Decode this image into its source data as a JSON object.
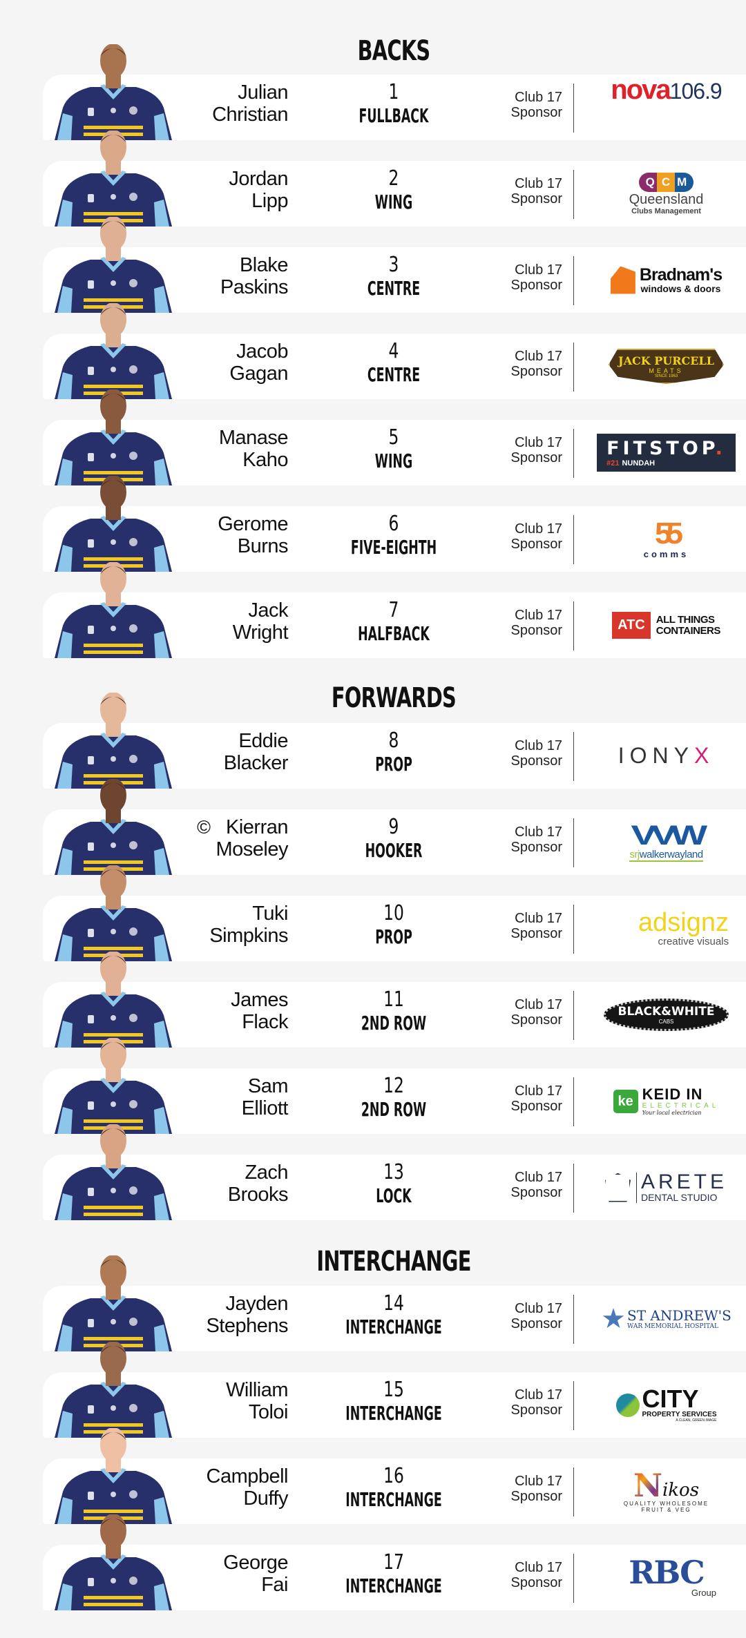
{
  "sections": [
    {
      "title": "BACKS"
    },
    {
      "title": "FORWARDS"
    },
    {
      "title": "INTERCHANGE"
    }
  ],
  "club_label": {
    "line1": "Club 17",
    "line2": "Sponsor"
  },
  "captain_mark": "©",
  "players": [
    {
      "first": "Julian",
      "last": "Christian",
      "number": "1",
      "position": "FULLBACK",
      "section": 0,
      "sponsor": {
        "style": "nova",
        "lines": [
          "nova",
          "106.9"
        ]
      }
    },
    {
      "first": "Jordan",
      "last": "Lipp",
      "number": "2",
      "position": "WING",
      "section": 0,
      "sponsor": {
        "style": "qcm",
        "lines": [
          "QCM",
          "Queensland",
          "Clubs Management"
        ]
      }
    },
    {
      "first": "Blake",
      "last": "Paskins",
      "number": "3",
      "position": "CENTRE",
      "section": 0,
      "sponsor": {
        "style": "brad",
        "lines": [
          "Bradnam's",
          "windows & doors"
        ]
      }
    },
    {
      "first": "Jacob",
      "last": "Gagan",
      "number": "4",
      "position": "CENTRE",
      "section": 0,
      "sponsor": {
        "style": "jack",
        "lines": [
          "JACK PURCELL",
          "MEATS",
          "SINCE 1963"
        ]
      }
    },
    {
      "first": "Manase",
      "last": "Kaho",
      "number": "5",
      "position": "WING",
      "section": 0,
      "sponsor": {
        "style": "fit",
        "lines": [
          "FITSTOP",
          "#21",
          "NUNDAH"
        ]
      }
    },
    {
      "first": "Gerome",
      "last": "Burns",
      "number": "6",
      "position": "FIVE-EIGHTH",
      "section": 0,
      "sponsor": {
        "style": "55",
        "lines": [
          "55",
          "comms"
        ]
      }
    },
    {
      "first": "Jack",
      "last": "Wright",
      "number": "7",
      "position": "HALFBACK",
      "section": 0,
      "sponsor": {
        "style": "atc",
        "lines": [
          "ATC",
          "ALL THINGS",
          "CONTAINERS"
        ]
      }
    },
    {
      "first": "Eddie",
      "last": "Blacker",
      "number": "8",
      "position": "PROP",
      "section": 1,
      "sponsor": {
        "style": "ionyx",
        "lines": [
          "IONY",
          "X"
        ]
      }
    },
    {
      "first": "Kierran",
      "last": "Moseley",
      "number": "9",
      "position": "HOOKER",
      "section": 1,
      "captain": true,
      "sponsor": {
        "style": "srj",
        "lines": [
          "VVW",
          "srj",
          "walkerwayland"
        ]
      }
    },
    {
      "first": "Tuki",
      "last": "Simpkins",
      "number": "10",
      "position": "PROP",
      "section": 1,
      "sponsor": {
        "style": "ads",
        "lines": [
          "adsignz",
          "creative visuals"
        ]
      }
    },
    {
      "first": "James",
      "last": "Flack",
      "number": "11",
      "position": "2ND ROW",
      "section": 1,
      "sponsor": {
        "style": "bw",
        "lines": [
          "BLACK&WHITE",
          "CABS"
        ]
      }
    },
    {
      "first": "Sam",
      "last": "Elliott",
      "number": "12",
      "position": "2ND ROW",
      "section": 1,
      "sponsor": {
        "style": "keid",
        "lines": [
          "KEID IN",
          "ELECTRICAL",
          "Your local electrician"
        ]
      }
    },
    {
      "first": "Zach",
      "last": "Brooks",
      "number": "13",
      "position": "LOCK",
      "section": 1,
      "sponsor": {
        "style": "arete",
        "lines": [
          "ARETE",
          "DENTAL STUDIO"
        ]
      }
    },
    {
      "first": "Jayden",
      "last": "Stephens",
      "number": "14",
      "position": "INTERCHANGE",
      "section": 2,
      "sponsor": {
        "style": "sta",
        "lines": [
          "ST ANDREW'S",
          "WAR MEMORIAL HOSPITAL"
        ]
      }
    },
    {
      "first": "William",
      "last": "Toloi",
      "number": "15",
      "position": "INTERCHANGE",
      "section": 2,
      "sponsor": {
        "style": "city",
        "lines": [
          "CITY",
          "PROPERTY SERVICES",
          "A CLEAN, GREEN IMAGE"
        ]
      }
    },
    {
      "first": "Campbell",
      "last": "Duffy",
      "number": "16",
      "position": "INTERCHANGE",
      "section": 2,
      "sponsor": {
        "style": "nikos",
        "lines": [
          "N",
          "ikos",
          "QUALITY WHOLESOME",
          "FRUIT & VEG"
        ]
      }
    },
    {
      "first": "George",
      "last": "Fai",
      "number": "17",
      "position": "INTERCHANGE",
      "section": 2,
      "sponsor": {
        "style": "rbc",
        "lines": [
          "RBC",
          "Group"
        ]
      }
    }
  ],
  "colors": {
    "background": "#f5f5f5",
    "card": "#ffffff",
    "jersey_navy": "#27306a",
    "jersey_sky": "#8cc6ea",
    "jersey_gold": "#f2c81e"
  }
}
